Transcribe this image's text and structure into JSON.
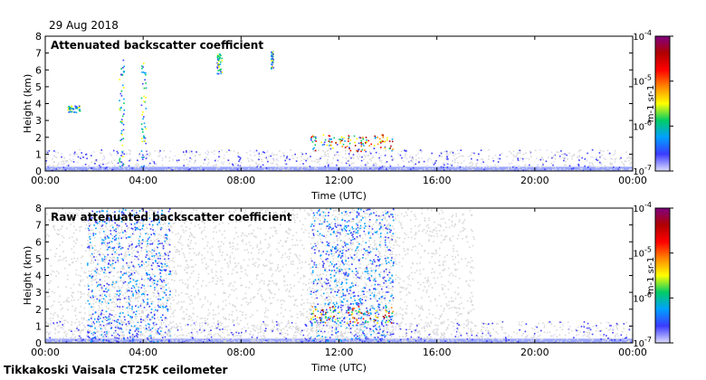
{
  "header": {
    "date": "29 Aug 2018"
  },
  "footer": {
    "station": "Tikkakoski Vaisala CT25K ceilometer"
  },
  "chart_data": [
    {
      "type": "heatmap",
      "title": "Attenuated backscatter coefficient",
      "xlabel": "Time (UTC)",
      "ylabel": "Height (km)",
      "xlim": [
        0,
        24
      ],
      "ylim": [
        0,
        8
      ],
      "x_ticks": [
        "00:00",
        "04:00",
        "08:00",
        "12:00",
        "16:00",
        "20:00",
        "00:00"
      ],
      "y_ticks": [
        "0",
        "1",
        "2",
        "3",
        "4",
        "5",
        "6",
        "7",
        "8"
      ],
      "colorbar": {
        "ticks": [
          "10-7",
          "10-6",
          "10-5",
          "10-4"
        ],
        "unit": "m-1 sr-1",
        "log": true
      },
      "features": [
        {
          "label": "low backscatter layer",
          "time": [
            0,
            24
          ],
          "height": [
            0,
            1.3
          ],
          "level": 1
        },
        {
          "label": "clouds",
          "time": [
            10.8,
            14.2
          ],
          "height": [
            1.2,
            2.2
          ],
          "level": 4
        },
        {
          "label": "cloud",
          "time": [
            0.9,
            1.4
          ],
          "height": [
            3.5,
            3.9
          ],
          "level": 3
        },
        {
          "label": "cloud",
          "time": [
            7.0,
            7.2
          ],
          "height": [
            5.8,
            7.0
          ],
          "level": 3
        },
        {
          "label": "cloud",
          "time": [
            9.2,
            9.3
          ],
          "height": [
            6.1,
            7.2
          ],
          "level": 3
        },
        {
          "label": "precipitation",
          "time": [
            3.0,
            3.2
          ],
          "height": [
            0,
            7.0
          ],
          "level": 3
        },
        {
          "label": "precipitation",
          "time": [
            3.9,
            4.1
          ],
          "height": [
            0,
            6.5
          ],
          "level": 3
        }
      ]
    },
    {
      "type": "heatmap",
      "title": "Raw attenuated backscatter coefficient",
      "xlabel": "Time (UTC)",
      "ylabel": "Height (km)",
      "xlim": [
        0,
        24
      ],
      "ylim": [
        0,
        8
      ],
      "x_ticks": [
        "00:00",
        "04:00",
        "08:00",
        "12:00",
        "16:00",
        "20:00",
        "00:00"
      ],
      "y_ticks": [
        "0",
        "1",
        "2",
        "3",
        "4",
        "5",
        "6",
        "7",
        "8"
      ],
      "colorbar": {
        "ticks": [
          "10-7",
          "10-6",
          "10-5",
          "10-4"
        ],
        "unit": "m-1 sr-1",
        "log": true
      },
      "features": [
        {
          "label": "noise",
          "time": [
            0,
            17.5
          ],
          "height": [
            0,
            8
          ],
          "level": 0
        },
        {
          "label": "noise",
          "time": [
            1.7,
            5.1
          ],
          "height": [
            0,
            8
          ],
          "level": 2
        },
        {
          "label": "noise",
          "time": [
            10.8,
            14.2
          ],
          "height": [
            0,
            8
          ],
          "level": 2
        },
        {
          "label": "low backscatter layer",
          "time": [
            0,
            24
          ],
          "height": [
            0,
            1.3
          ],
          "level": 1
        },
        {
          "label": "clouds",
          "time": [
            10.8,
            14.2
          ],
          "height": [
            1.2,
            2.2
          ],
          "level": 4
        }
      ]
    }
  ],
  "colors": {
    "scale": [
      "#ddddff",
      "#3b3bff",
      "#00a0ff",
      "#00cc66",
      "#ffff00",
      "#ff8800",
      "#ff0000",
      "#b00000",
      "#800080"
    ],
    "noise": "#d9d9d9",
    "ground": "#9aa6ff"
  }
}
